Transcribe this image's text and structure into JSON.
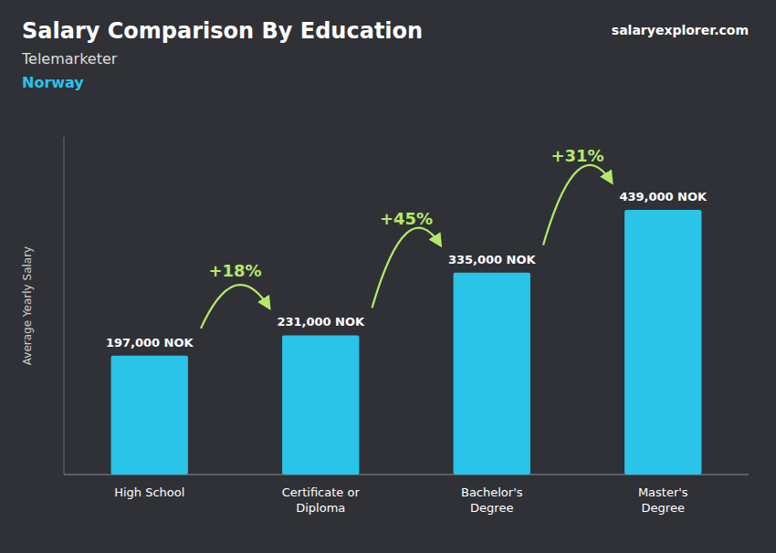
{
  "chart_data": {
    "type": "bar",
    "title": "Salary Comparison By Education",
    "subtitle": "Telemarketer",
    "ylabel": "Average Yearly Salary",
    "annotations": [
      "Norway",
      "salaryexplorer.com",
      "+18%",
      "+45%",
      "+31%"
    ],
    "categories": [
      "High School",
      "Certificate or\nDiploma",
      "Bachelor's\nDegree",
      "Master's\nDegree"
    ],
    "values": [
      197000,
      231000,
      335000,
      439000
    ],
    "value_labels": [
      "197,000 NOK",
      "231,000 NOK",
      "335,000 NOK",
      "439,000 NOK"
    ],
    "data_labels": true,
    "color": "#29C4E8",
    "ylim": [
      0,
      560000
    ],
    "tick_labels": "x"
  }
}
